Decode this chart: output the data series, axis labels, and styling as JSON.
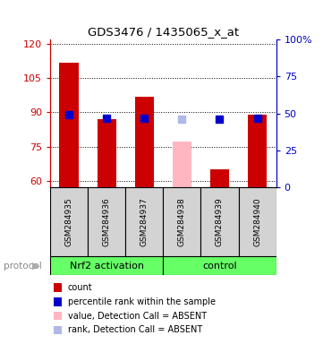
{
  "title": "GDS3476 / 1435065_x_at",
  "samples": [
    "GSM284935",
    "GSM284936",
    "GSM284937",
    "GSM284938",
    "GSM284939",
    "GSM284940"
  ],
  "bar_values": [
    112,
    87,
    97,
    77,
    65,
    89
  ],
  "bar_colors": [
    "#cc0000",
    "#cc0000",
    "#cc0000",
    "#ffb6c1",
    "#cc0000",
    "#cc0000"
  ],
  "rank_values_pct": [
    49,
    47,
    47,
    46,
    46,
    47
  ],
  "rank_colors": [
    "#0000cc",
    "#0000cc",
    "#0000cc",
    "#b0b8e8",
    "#0000cc",
    "#0000cc"
  ],
  "absent_flags": [
    false,
    false,
    false,
    true,
    false,
    false
  ],
  "ylim_left": [
    57,
    122
  ],
  "ylim_right": [
    0,
    100
  ],
  "yticks_left": [
    60,
    75,
    90,
    105,
    120
  ],
  "ytick_labels_left": [
    "60",
    "75",
    "90",
    "105",
    "120"
  ],
  "yticks_right": [
    0,
    25,
    50,
    75,
    100
  ],
  "ytick_labels_right": [
    "0",
    "25",
    "50",
    "75",
    "100%"
  ],
  "left_axis_color": "#cc0000",
  "right_axis_color": "#0000cc",
  "legend_items": [
    {
      "label": "count",
      "color": "#cc0000"
    },
    {
      "label": "percentile rank within the sample",
      "color": "#0000cc"
    },
    {
      "label": "value, Detection Call = ABSENT",
      "color": "#ffb6c1"
    },
    {
      "label": "rank, Detection Call = ABSENT",
      "color": "#b0b8e8"
    }
  ],
  "group1_label": "Nrf2 activation",
  "group2_label": "control",
  "group_color": "#66ff66",
  "protocol_label": "protocol",
  "bar_width": 0.5,
  "rank_marker_size": 6,
  "bg_color": "#ffffff"
}
